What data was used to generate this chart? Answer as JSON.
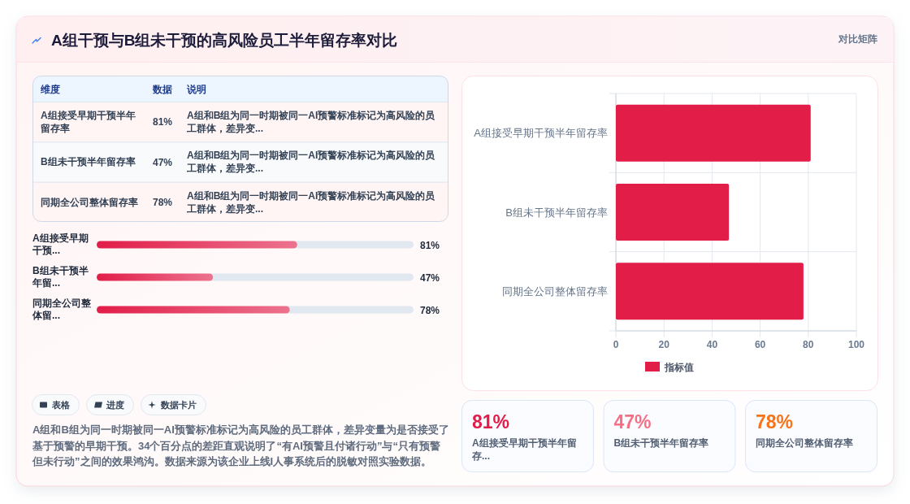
{
  "chart_data": [
    {
      "type": "other",
      "title": "A组干预与B组未干预的高风险员工半年留存率对比",
      "annotations": [
        "对比矩阵"
      ]
    },
    {
      "type": "other",
      "categories": [
        "A组接受早期干预半年留存率",
        "B组未干预半年留存率",
        "同期全公司整体留存率"
      ],
      "value_labels": [
        "81%",
        "47%",
        "78%"
      ],
      "annotations": [
        "维度",
        "数据",
        "说明",
        "A组和B组为同一时期被同一AI预警标准标记为高风险的员工群体，差异变...",
        "A组和B组为同一时期被同一AI预警标准标记为高风险的员工群体，差异变...",
        "A组和B组为同一时期被同一AI预警标准标记为高风险的员工群体，差异变..."
      ]
    },
    {
      "type": "bar",
      "orientation": "horizontal",
      "categories": [
        "A组接受早期干预...",
        "B组未干预半年留...",
        "同期全公司整体留..."
      ],
      "values": [
        81,
        47,
        78
      ],
      "value_labels": [
        "81%",
        "47%",
        "78%"
      ],
      "color": "#e11d48",
      "xlim": [
        0,
        128
      ],
      "tick_labels": "y"
    },
    {
      "type": "other",
      "annotations": [
        "表格",
        "进度",
        "数据卡片",
        "A组和B组为同一时期被同一AI预警标准标记为高风险的员工群体，差异变量为是否接受了基于预警的早期干预。34个百分点的差距直观说明了“有AI预警且付诸行动”与“只有预警但未行动”之间的效果鸿沟。数据来源为该企业上线I人事系统后的脱敏对照实验数据。"
      ]
    },
    {
      "type": "bar",
      "orientation": "horizontal",
      "categories": [
        "A组接受早期干预半年留存率",
        "B组未干预半年留存率",
        "同期全公司整体留存率"
      ],
      "series": [
        {
          "name": "指标值",
          "color": "#e11d48",
          "values": [
            81,
            47,
            78
          ]
        }
      ],
      "xlim": [
        0,
        100
      ],
      "xticks": [
        0,
        20,
        40,
        60,
        80,
        100
      ],
      "grid": true,
      "legend": "bottom"
    },
    {
      "type": "other",
      "categories": [
        "A组接受早期干预半年留存...",
        "B组未干预半年留存率",
        "同期全公司整体留存率"
      ],
      "value_labels": [
        "81%",
        "47%",
        "78%"
      ]
    }
  ]
}
